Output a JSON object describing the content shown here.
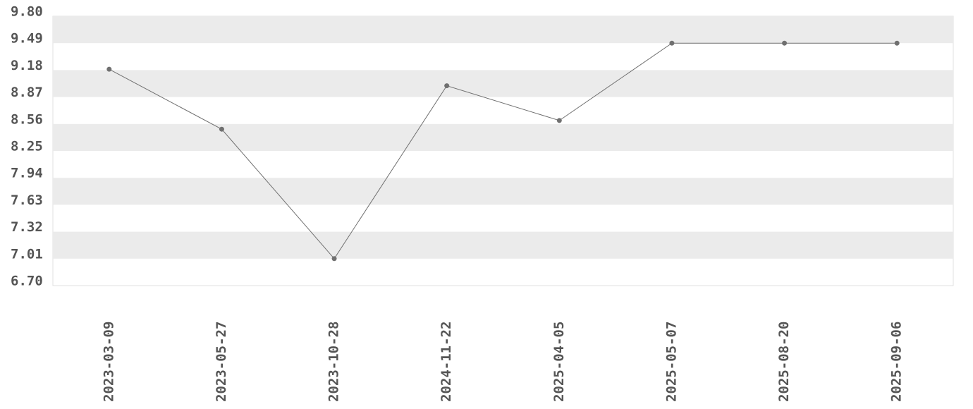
{
  "chart_data": {
    "type": "line",
    "categories": [
      "2023-03-09",
      "2023-05-27",
      "2023-10-28",
      "2024-11-22",
      "2025-04-05",
      "2025-05-07",
      "2025-08-20",
      "2025-09-06"
    ],
    "values": [
      9.19,
      8.5,
      7.01,
      9.0,
      8.6,
      9.49,
      9.49,
      9.49
    ],
    "color": "#707070",
    "ylim": [
      6.7,
      9.8
    ],
    "yticks": [
      {
        "value": 6.7,
        "label": "6.70"
      },
      7.01,
      7.32,
      7.63,
      7.94,
      8.25,
      8.56,
      8.87,
      9.18,
      9.49,
      {
        "value": 9.8,
        "label": "9.80"
      }
    ],
    "grid": true
  }
}
